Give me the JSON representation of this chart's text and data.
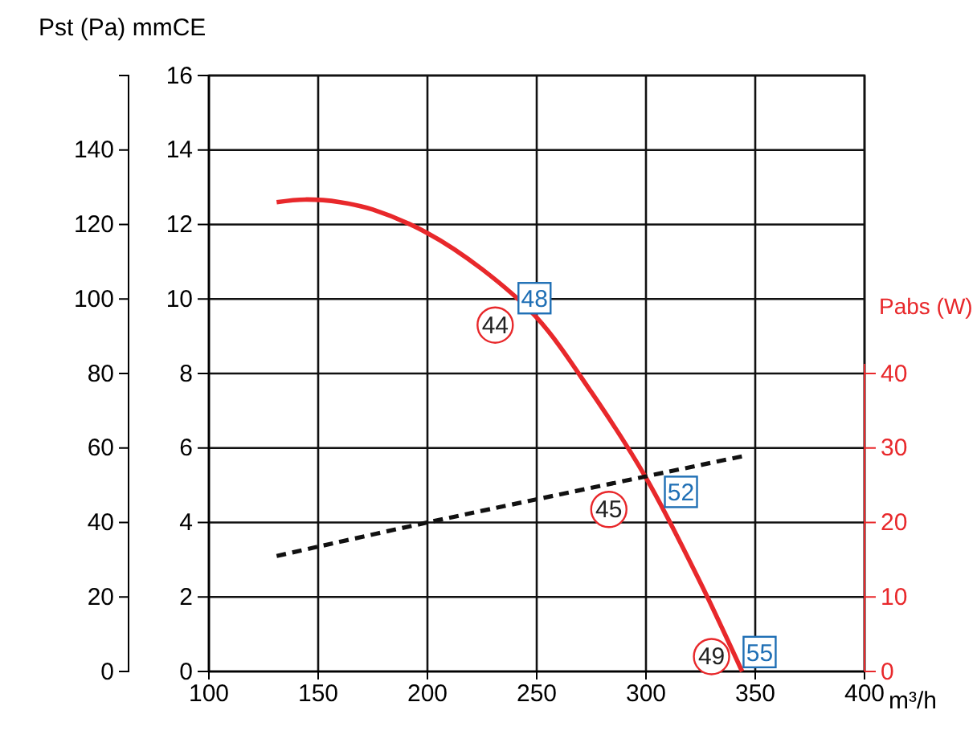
{
  "chart_data": {
    "type": "line",
    "ylabel": "Pst (Pa) mmCE",
    "y2label": "Pabs (W)",
    "xlabel": "m³/h",
    "xlim": [
      100,
      400
    ],
    "xticks": [
      100,
      150,
      200,
      250,
      300,
      350,
      400
    ],
    "ylim": [
      0,
      16
    ],
    "yticks": [
      0,
      2,
      4,
      6,
      8,
      10,
      12,
      14,
      16
    ],
    "y3lim": [
      0,
      160
    ],
    "y3ticks": [
      0,
      20,
      40,
      60,
      80,
      100,
      120,
      140
    ],
    "y2lim": [
      0,
      80
    ],
    "y2ticks": [
      0,
      10,
      20,
      30,
      40
    ],
    "grid": true,
    "series": [
      {
        "color": "#e8282b",
        "line_style": "solid",
        "x": [
          131,
          144,
          160,
          175,
          200,
          225,
          250,
          275,
          300,
          325,
          344
        ],
        "values": [
          12.6,
          12.67,
          12.6,
          12.4,
          11.77,
          10.8,
          9.5,
          7.5,
          5.2,
          2.37,
          0
        ]
      },
      {
        "color": "#111111",
        "line_style": "dashed",
        "axis": "y2",
        "x": [
          131,
          200,
          346
        ],
        "values": [
          15.5,
          20,
          29
        ]
      }
    ],
    "annotations": [
      {
        "text": "44",
        "x": 231,
        "y": 9.3
      },
      {
        "text": "48",
        "x": 249,
        "y": 10.0
      },
      {
        "text": "45",
        "x": 283,
        "y": 4.35
      },
      {
        "text": "52",
        "x": 316,
        "y": 4.8
      },
      {
        "text": "49",
        "x": 330,
        "y": 0.4
      },
      {
        "text": "55",
        "x": 352,
        "y": 0.5
      }
    ]
  }
}
